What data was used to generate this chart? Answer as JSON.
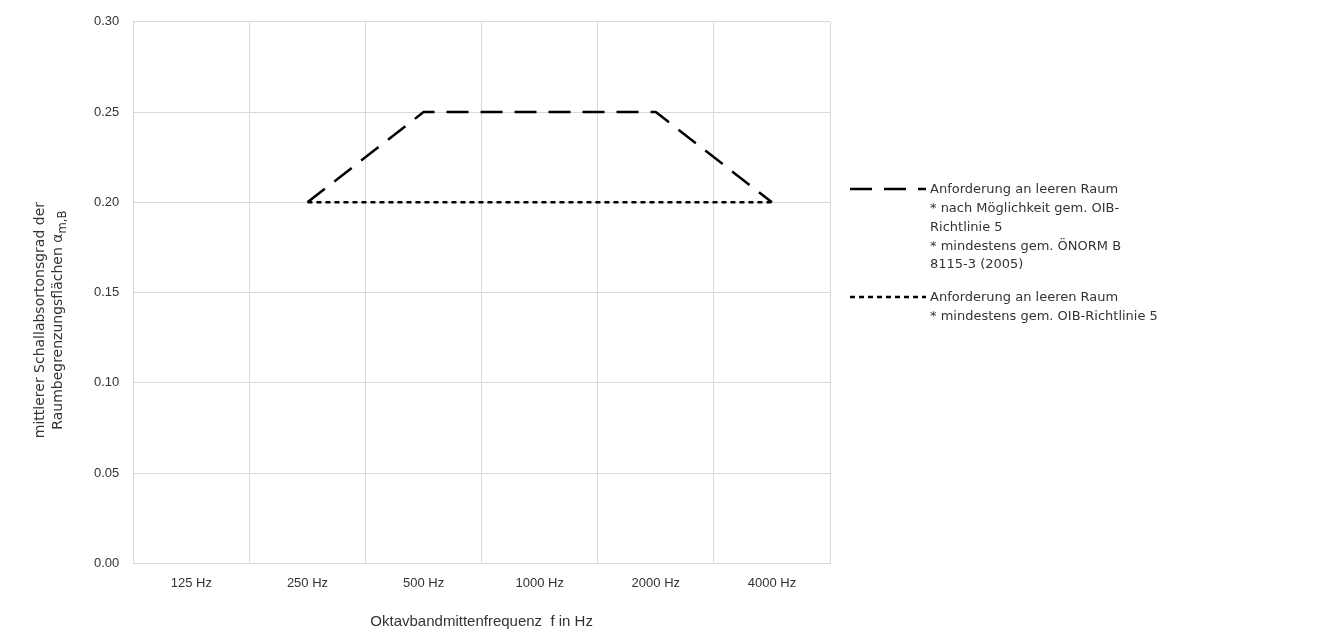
{
  "chart_data": {
    "type": "line",
    "xlabel": "Oktavbandmittenfrequenz  f in Hz",
    "ylabel": "mittlerer Schallabsortonsgrad der Raumbegrenzungsflächen α$_{m,B}$",
    "categories": [
      "125 Hz",
      "250 Hz",
      "500 Hz",
      "1000 Hz",
      "2000 Hz",
      "4000 Hz"
    ],
    "series": [
      {
        "name": "Anforderung an leeren Raum\n* nach Möglichkeit gem. OIB-Richtlinie 5\n* mindestens gem. ÖNORM B 8115-3 (2005)",
        "color": "#000000",
        "line_style": "dashed",
        "values": [
          null,
          0.2,
          0.25,
          0.25,
          0.25,
          0.2
        ]
      },
      {
        "name": "Anforderung an leeren Raum\n* mindestens gem. OIB-Richtlinie 5",
        "color": "#000000",
        "line_style": "dotted",
        "values": [
          null,
          0.2,
          0.2,
          0.2,
          0.2,
          0.2
        ]
      }
    ],
    "ylim": [
      0,
      0.3
    ],
    "yticks": [
      {
        "value": 0,
        "label": "0.00"
      },
      0.05,
      {
        "value": 0.1,
        "label": "0.10"
      },
      0.15,
      {
        "value": 0.2,
        "label": "0.20"
      },
      0.25,
      {
        "value": 0.3,
        "label": "0.30"
      }
    ],
    "grid": true,
    "legend": "right",
    "marker": "none"
  }
}
